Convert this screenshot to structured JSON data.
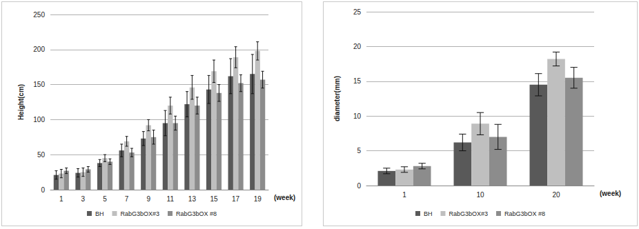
{
  "chart_data": [
    {
      "type": "bar",
      "y_label": "Height(cm)",
      "x_label": "(week)",
      "categories": [
        "1",
        "3",
        "5",
        "7",
        "9",
        "11",
        "13",
        "15",
        "17",
        "19"
      ],
      "series": [
        {
          "name": "BH",
          "color": "#595959",
          "values": [
            21,
            24,
            38,
            56,
            73,
            95,
            122,
            143,
            162,
            165
          ],
          "errors": [
            6,
            6,
            5,
            9,
            10,
            18,
            18,
            20,
            25,
            28
          ]
        },
        {
          "name": "RabG3bOX#3",
          "color": "#bfbfbf",
          "values": [
            23,
            25,
            45,
            69,
            92,
            120,
            146,
            169,
            189,
            198
          ],
          "errors": [
            6,
            6,
            5,
            7,
            8,
            12,
            17,
            16,
            15,
            13
          ]
        },
        {
          "name": "RabG3bOX #8",
          "color": "#8c8c8c",
          "values": [
            27,
            29,
            40,
            53,
            75,
            95,
            120,
            138,
            152,
            157
          ],
          "errors": [
            4,
            4,
            4,
            6,
            10,
            10,
            12,
            12,
            12,
            12
          ]
        }
      ],
      "ylim": [
        0,
        250
      ],
      "yticks": [
        0,
        50,
        100,
        150,
        200,
        250
      ],
      "grid": true,
      "legend": "bottom"
    },
    {
      "type": "bar",
      "y_label": "diameter(mm)",
      "x_label": "(week)",
      "categories": [
        "1",
        "10",
        "20"
      ],
      "series": [
        {
          "name": "BH",
          "color": "#595959",
          "values": [
            2.1,
            6.2,
            14.5
          ],
          "errors": [
            0.4,
            1.2,
            1.6
          ]
        },
        {
          "name": "RabG3bOX#3",
          "color": "#bfbfbf",
          "values": [
            2.3,
            8.9,
            18.2
          ],
          "errors": [
            0.4,
            1.6,
            1.0
          ]
        },
        {
          "name": "RabG3bOX #8",
          "color": "#8c8c8c",
          "values": [
            2.8,
            7.0,
            15.5
          ],
          "errors": [
            0.4,
            1.8,
            1.5
          ]
        }
      ],
      "ylim": [
        0,
        25
      ],
      "yticks": [
        0,
        5,
        10,
        15,
        20,
        25
      ],
      "grid": true,
      "legend": "bottom"
    }
  ]
}
